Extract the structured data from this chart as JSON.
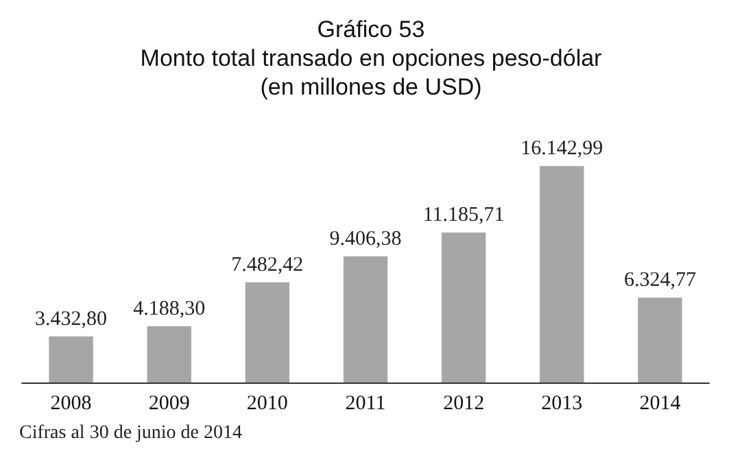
{
  "chart_data": {
    "type": "bar",
    "title": "Gráfico 53",
    "subtitle": "Monto total transado en opciones peso-dólar\n(en millones de USD)",
    "categories": [
      "2008",
      "2009",
      "2010",
      "2011",
      "2012",
      "2013",
      "2014"
    ],
    "values": [
      3432.8,
      4188.3,
      7482.42,
      9406.38,
      11185.71,
      16142.99,
      6324.77
    ],
    "value_labels": [
      "3.432,80",
      "4.188,30",
      "7.482,42",
      "9.406,38",
      "11.185,71",
      "16.142,99",
      "6.324,77"
    ],
    "color": "#a6a6a6",
    "annotations": [
      "Cifras al 30 de junio de 2014"
    ],
    "grid": false
  }
}
